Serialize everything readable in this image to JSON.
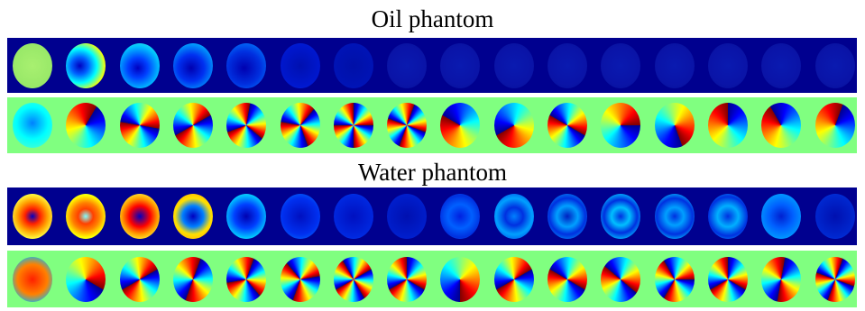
{
  "panels": [
    {
      "title": "Oil phantom"
    },
    {
      "title": "Water phantom"
    }
  ]
}
